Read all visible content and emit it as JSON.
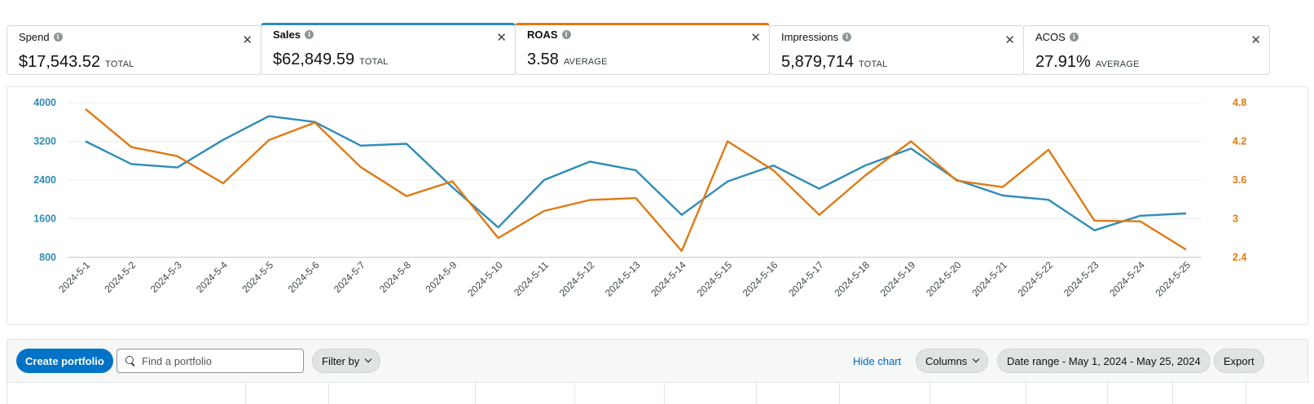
{
  "metrics": [
    {
      "label": "Spend",
      "value": "$17,543.52",
      "agg": "TOTAL",
      "selected": ""
    },
    {
      "label": "Sales",
      "value": "$62,849.59",
      "agg": "TOTAL",
      "selected": "blue"
    },
    {
      "label": "ROAS",
      "value": "3.58",
      "agg": "AVERAGE",
      "selected": "orange"
    },
    {
      "label": "Impressions",
      "value": "5,879,714",
      "agg": "TOTAL",
      "selected": ""
    },
    {
      "label": "ACOS",
      "value": "27.91%",
      "agg": "AVERAGE",
      "selected": ""
    }
  ],
  "icons": {
    "info": "info-icon",
    "close": "close-icon",
    "search": "search-icon",
    "dropdown": "chevron-down-icon"
  },
  "colors": {
    "sales": "#2e8cb8",
    "roas": "#df7a14",
    "primary_button": "#0073c7",
    "link": "#0066c0"
  },
  "chart_data": {
    "type": "line",
    "x": [
      "2024-5-1",
      "2024-5-2",
      "2024-5-3",
      "2024-5-4",
      "2024-5-5",
      "2024-5-6",
      "2024-5-7",
      "2024-5-8",
      "2024-5-9",
      "2024-5-10",
      "2024-5-11",
      "2024-5-12",
      "2024-5-13",
      "2024-5-14",
      "2024-5-15",
      "2024-5-16",
      "2024-5-17",
      "2024-5-18",
      "2024-5-19",
      "2024-5-20",
      "2024-5-21",
      "2024-5-22",
      "2024-5-23",
      "2024-5-24",
      "2024-5-25"
    ],
    "series": [
      {
        "name": "Sales",
        "axis": "left",
        "color": "#2e8cb8",
        "values": [
          3200,
          2730,
          2660,
          3230,
          3720,
          3600,
          3110,
          3150,
          2250,
          1420,
          2400,
          2780,
          2600,
          1680,
          2370,
          2700,
          2220,
          2700,
          3050,
          2400,
          2080,
          1990,
          1360,
          1660,
          1710
        ]
      },
      {
        "name": "ROAS",
        "axis": "right",
        "color": "#df7a14",
        "values": [
          4.7,
          4.11,
          3.97,
          3.55,
          4.22,
          4.49,
          3.8,
          3.35,
          3.58,
          2.7,
          3.12,
          3.29,
          3.32,
          2.5,
          4.2,
          3.75,
          3.06,
          3.67,
          4.2,
          3.59,
          3.49,
          4.07,
          2.97,
          2.96,
          2.52
        ]
      }
    ],
    "y_left": {
      "ticks": [
        4000,
        3200,
        2400,
        1600,
        800
      ],
      "range": [
        800,
        4000
      ]
    },
    "y_right": {
      "ticks": [
        "4.8",
        "4.2",
        "3.6",
        "3",
        "2.4"
      ],
      "range": [
        2.4,
        4.8
      ]
    },
    "grid": true
  },
  "toolbar": {
    "create_label": "Create portfolio",
    "search_placeholder": "Find a portfolio",
    "filter_label": "Filter by",
    "hide_chart_label": "Hide chart",
    "columns_label": "Columns",
    "date_range_label": "Date range - May 1, 2024 - May 25, 2024",
    "export_label": "Export"
  }
}
